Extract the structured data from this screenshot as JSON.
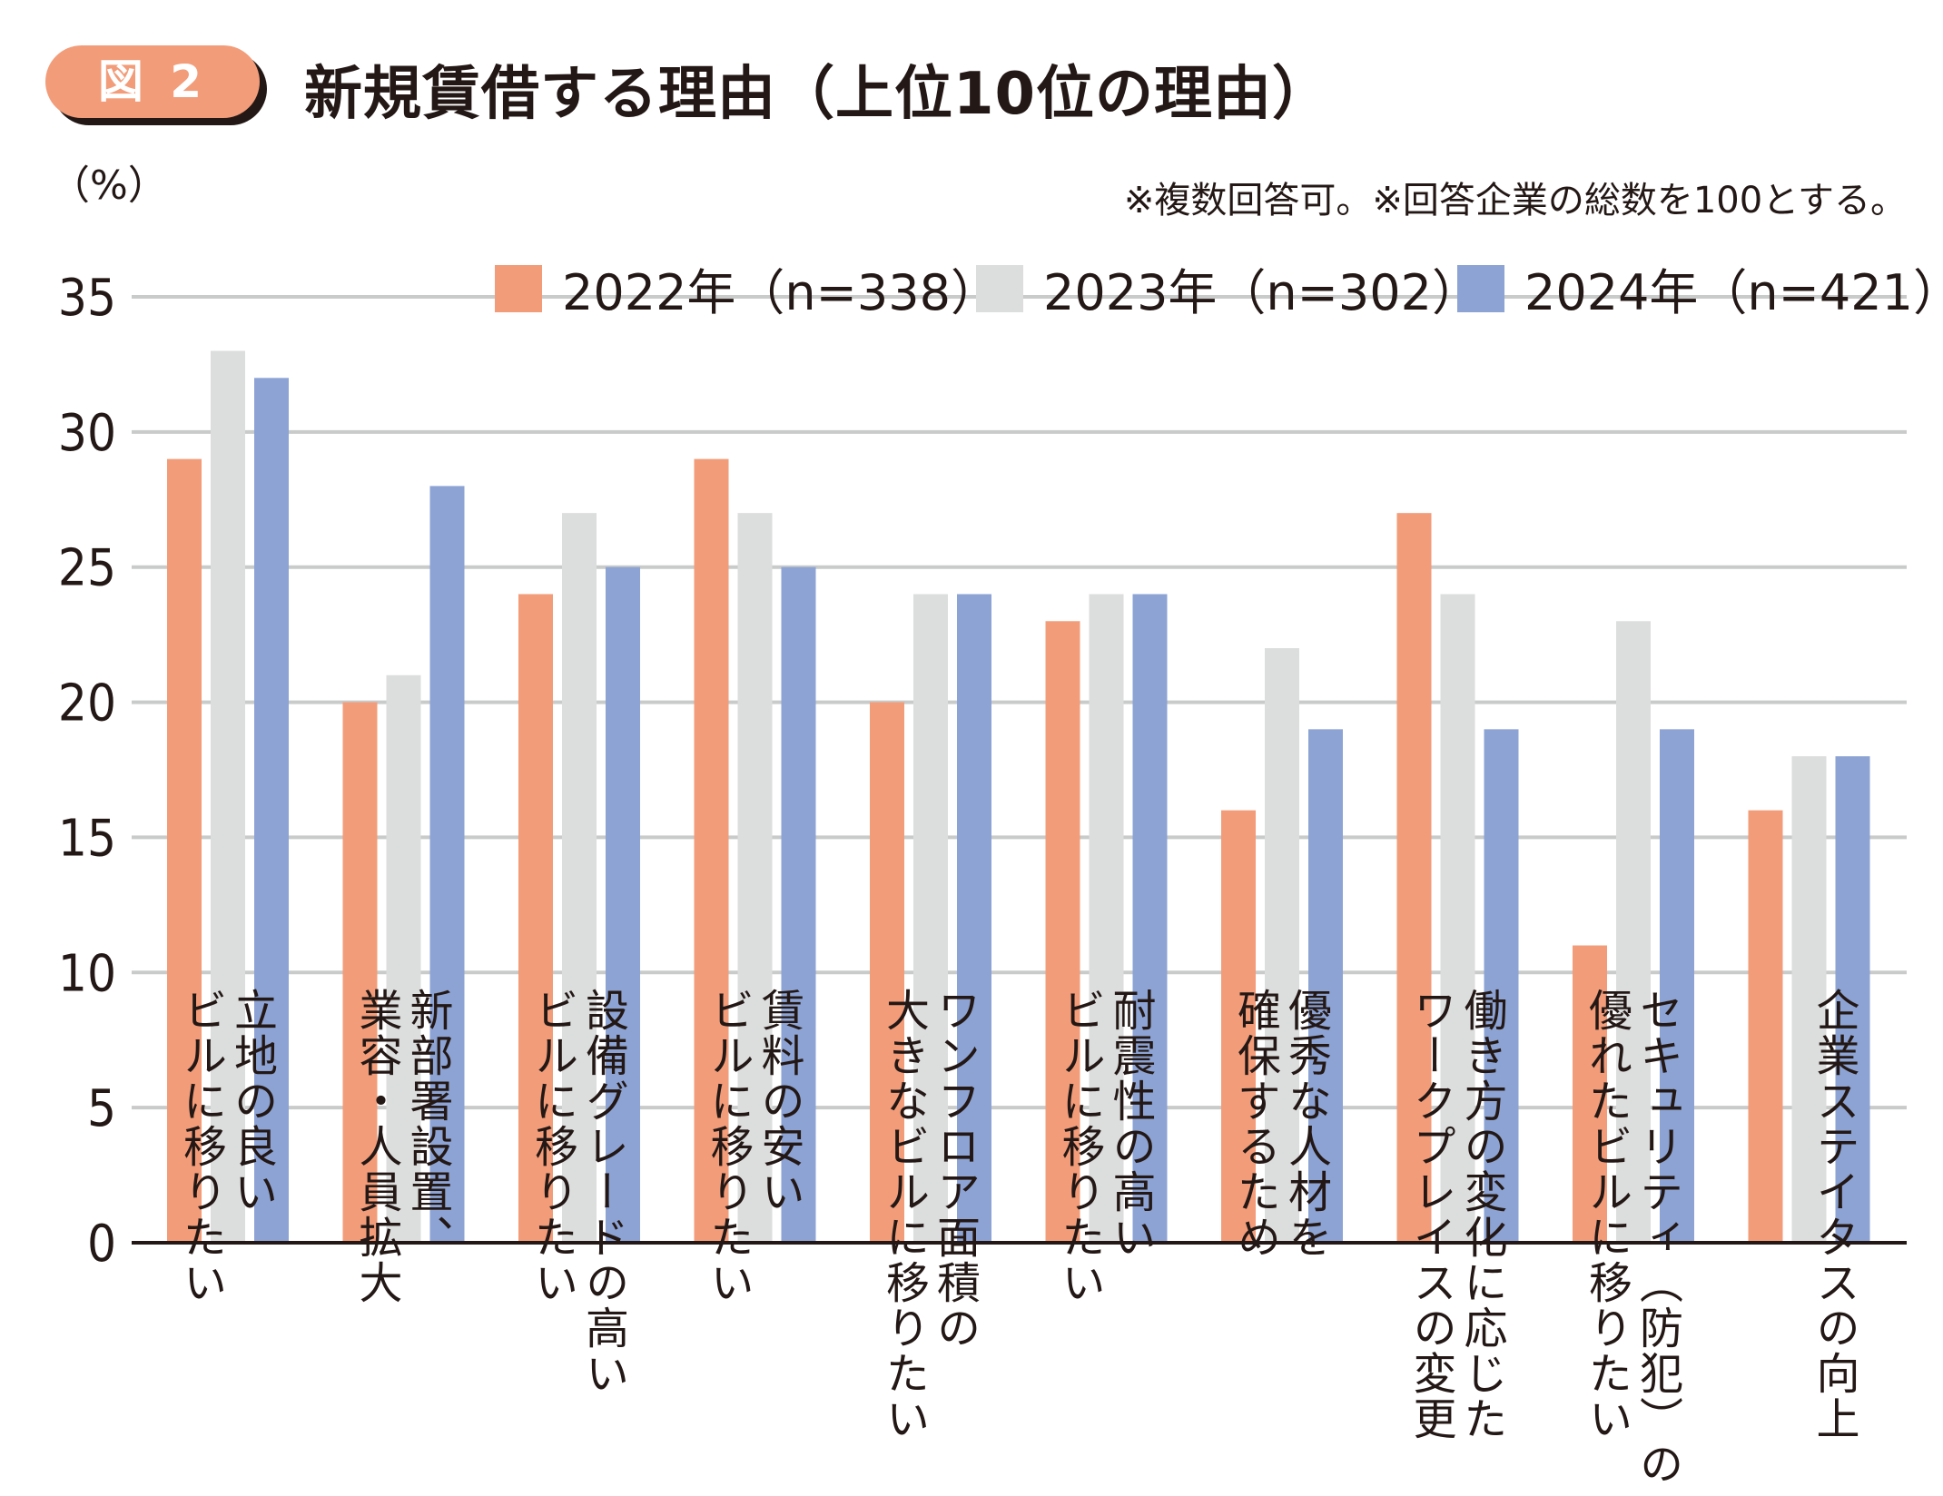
{
  "figure": {
    "badge": "図 2",
    "title": "新規賃借する理由（上位10位の理由）",
    "unit": "（%）",
    "note": "※複数回答可。※回答企業の総数を100とする。"
  },
  "chart_data": {
    "type": "bar",
    "title": "新規賃借する理由（上位10位の理由）",
    "xlabel": "",
    "ylabel": "（%）",
    "ylim": [
      0,
      35
    ],
    "yticks": [
      0,
      5,
      10,
      15,
      20,
      25,
      30,
      35
    ],
    "grid": true,
    "legend_position": "top-right",
    "categories": [
      "立地の良い\nビルに移りたい",
      "新部署設置、\n業容・人員拡大",
      "設備グレードの高い\nビルに移りたい",
      "賃料の安い\nビルに移りたい",
      "ワンフロア面積の\n大きなビルに移りたい",
      "耐震性の高い\nビルに移りたい",
      "優秀な人材を\n確保するため",
      "働き方の変化に応じた\nワークプレイスの変更",
      "セキュリティ（防犯）の\n優れたビルに移りたい",
      "企業ステイタスの向上"
    ],
    "series": [
      {
        "name": "2022年（n=338）",
        "color": "#f29c79",
        "values": [
          29,
          20,
          24,
          29,
          20,
          23,
          16,
          27,
          11,
          16
        ]
      },
      {
        "name": "2023年（n=302）",
        "color": "#dcdddd",
        "values": [
          33,
          21,
          27,
          27,
          24,
          24,
          22,
          24,
          23,
          18
        ]
      },
      {
        "name": "2024年（n=421）",
        "color": "#8ca3d4",
        "values": [
          32,
          28,
          25,
          25,
          24,
          24,
          19,
          19,
          19,
          18
        ]
      }
    ],
    "colors": {
      "gridline": "#c9caca",
      "axis": "#231815",
      "text": "#231815"
    }
  }
}
